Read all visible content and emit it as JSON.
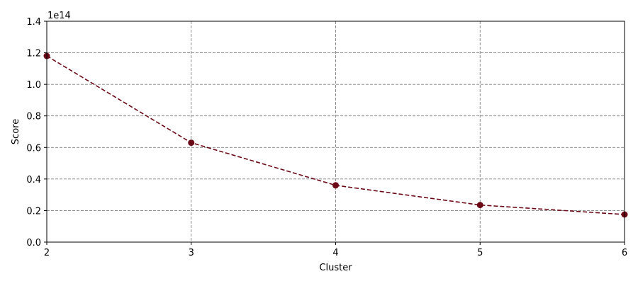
{
  "chart_data": {
    "type": "line",
    "title": "",
    "xlabel": "Cluster",
    "ylabel": "Score",
    "offset_text": "1e14",
    "x": [
      2,
      3,
      4,
      5,
      6
    ],
    "series": [
      {
        "values": [
          118000000000000.0,
          63000000000000.0,
          36000000000000.0,
          23500000000000.0,
          17500000000000.0
        ]
      }
    ],
    "xlim": [
      2,
      6
    ],
    "ylim": [
      0,
      140000000000000.0
    ],
    "x_ticks": [
      "2",
      "3",
      "4",
      "5",
      "6"
    ],
    "y_ticks": [
      "0.0",
      "0.2",
      "0.4",
      "0.6",
      "0.8",
      "1.0",
      "1.2",
      "1.4"
    ],
    "grid": true,
    "line_style": "dashed",
    "marker": "circle",
    "color": "#6b0a16",
    "grid_color": "#808080"
  }
}
